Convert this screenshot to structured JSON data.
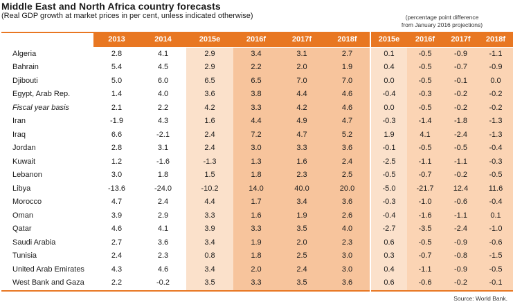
{
  "title": "Middle East and North Africa country forecasts",
  "subtitle": "(Real GDP growth at market prices in per cent, unless indicated otherwise)",
  "note_line1": "(percentage point difference",
  "note_line2": "from January 2016 projections)",
  "left_headers": [
    "2013",
    "2014",
    "2015e",
    "2016f",
    "2017f",
    "2018f"
  ],
  "right_headers": [
    "2015e",
    "2016f",
    "2017f",
    "2018f"
  ],
  "rows": [
    {
      "country": "Algeria",
      "italic": false,
      "values": [
        "2.8",
        "4.1",
        "2.9",
        "3.4",
        "3.1",
        "2.7"
      ],
      "diffs": [
        "0.1",
        "-0.5",
        "-0.9",
        "-1.1"
      ]
    },
    {
      "country": "Bahrain",
      "italic": false,
      "values": [
        "5.4",
        "4.5",
        "2.9",
        "2.2",
        "2.0",
        "1.9"
      ],
      "diffs": [
        "0.4",
        "-0.5",
        "-0.7",
        "-0.9"
      ]
    },
    {
      "country": "Djibouti",
      "italic": false,
      "values": [
        "5.0",
        "6.0",
        "6.5",
        "6.5",
        "7.0",
        "7.0"
      ],
      "diffs": [
        "0.0",
        "-0.5",
        "-0.1",
        "0.0"
      ]
    },
    {
      "country": "Egypt, Arab Rep.",
      "italic": false,
      "values": [
        "1.4",
        "4.0",
        "3.6",
        "3.8",
        "4.4",
        "4.6"
      ],
      "diffs": [
        "-0.4",
        "-0.3",
        "-0.2",
        "-0.2"
      ]
    },
    {
      "country": "Fiscal year basis",
      "italic": true,
      "values": [
        "2.1",
        "2.2",
        "4.2",
        "3.3",
        "4.2",
        "4.6"
      ],
      "diffs": [
        "0.0",
        "-0.5",
        "-0.2",
        "-0.2"
      ]
    },
    {
      "country": "Iran",
      "italic": false,
      "values": [
        "-1.9",
        "4.3",
        "1.6",
        "4.4",
        "4.9",
        "4.7"
      ],
      "diffs": [
        "-0.3",
        "-1.4",
        "-1.8",
        "-1.3"
      ]
    },
    {
      "country": "Iraq",
      "italic": false,
      "values": [
        "6.6",
        "-2.1",
        "2.4",
        "7.2",
        "4.7",
        "5.2"
      ],
      "diffs": [
        "1.9",
        "4.1",
        "-2.4",
        "-1.3"
      ]
    },
    {
      "country": "Jordan",
      "italic": false,
      "values": [
        "2.8",
        "3.1",
        "2.4",
        "3.0",
        "3.3",
        "3.6"
      ],
      "diffs": [
        "-0.1",
        "-0.5",
        "-0.5",
        "-0.4"
      ]
    },
    {
      "country": "Kuwait",
      "italic": false,
      "values": [
        "1.2",
        "-1.6",
        "-1.3",
        "1.3",
        "1.6",
        "2.4"
      ],
      "diffs": [
        "-2.5",
        "-1.1",
        "-1.1",
        "-0.3"
      ]
    },
    {
      "country": "Lebanon",
      "italic": false,
      "values": [
        "3.0",
        "1.8",
        "1.5",
        "1.8",
        "2.3",
        "2.5"
      ],
      "diffs": [
        "-0.5",
        "-0.7",
        "-0.2",
        "-0.5"
      ]
    },
    {
      "country": "Libya",
      "italic": false,
      "values": [
        "-13.6",
        "-24.0",
        "-10.2",
        "14.0",
        "40.0",
        "20.0"
      ],
      "diffs": [
        "-5.0",
        "-21.7",
        "12.4",
        "11.6"
      ]
    },
    {
      "country": "Morocco",
      "italic": false,
      "values": [
        "4.7",
        "2.4",
        "4.4",
        "1.7",
        "3.4",
        "3.6"
      ],
      "diffs": [
        "-0.3",
        "-1.0",
        "-0.6",
        "-0.4"
      ]
    },
    {
      "country": "Oman",
      "italic": false,
      "values": [
        "3.9",
        "2.9",
        "3.3",
        "1.6",
        "1.9",
        "2.6"
      ],
      "diffs": [
        "-0.4",
        "-1.6",
        "-1.1",
        "0.1"
      ]
    },
    {
      "country": "Qatar",
      "italic": false,
      "values": [
        "4.6",
        "4.1",
        "3.9",
        "3.3",
        "3.5",
        "4.0"
      ],
      "diffs": [
        "-2.7",
        "-3.5",
        "-2.4",
        "-1.0"
      ]
    },
    {
      "country": "Saudi Arabia",
      "italic": false,
      "values": [
        "2.7",
        "3.6",
        "3.4",
        "1.9",
        "2.0",
        "2.3"
      ],
      "diffs": [
        "0.6",
        "-0.5",
        "-0.9",
        "-0.6"
      ]
    },
    {
      "country": "Tunisia",
      "italic": false,
      "values": [
        "2.4",
        "2.3",
        "0.8",
        "1.8",
        "2.5",
        "3.0"
      ],
      "diffs": [
        "0.3",
        "-0.7",
        "-0.8",
        "-1.5"
      ]
    },
    {
      "country": "United Arab Emirates",
      "italic": false,
      "values": [
        "4.3",
        "4.6",
        "3.4",
        "2.0",
        "2.4",
        "3.0"
      ],
      "diffs": [
        "0.4",
        "-1.1",
        "-0.9",
        "-0.5"
      ]
    },
    {
      "country": "West Bank and Gaza",
      "italic": false,
      "values": [
        "2.2",
        "-0.2",
        "3.5",
        "3.3",
        "3.5",
        "3.6"
      ],
      "diffs": [
        "0.6",
        "-0.6",
        "-0.2",
        "-0.1"
      ]
    }
  ],
  "source": "Source: World Bank."
}
